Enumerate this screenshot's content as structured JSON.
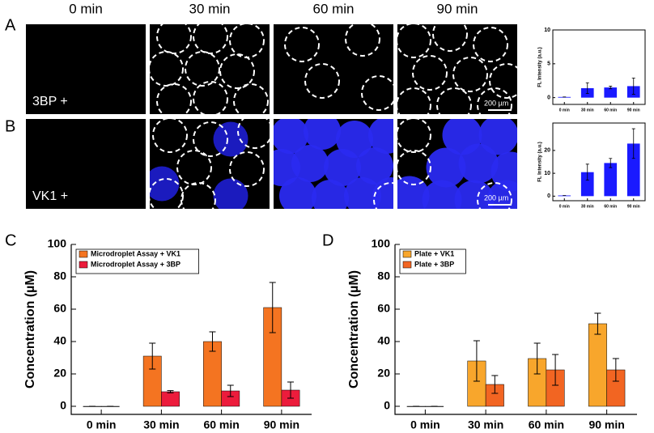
{
  "panel_labels": [
    "A",
    "B",
    "C",
    "D"
  ],
  "column_headers": [
    "0 min",
    "30 min",
    "60 min",
    "90 min"
  ],
  "image_labels": [
    "3BP +",
    "VK1 +"
  ],
  "scale_bar": "200 µm",
  "chart_data": [
    {
      "type": "bar",
      "ylabel": "FL Intensity (a.u.)",
      "categories": [
        "0 min",
        "30 min",
        "60 min",
        "90 min"
      ],
      "series": [
        {
          "color": "#1a1aff",
          "values": [
            0.1,
            1.4,
            1.5,
            1.7
          ],
          "errors": [
            0,
            0.8,
            0.2,
            1.2
          ]
        }
      ],
      "ylim": [
        -1,
        10
      ],
      "yticks": [
        0,
        5,
        10
      ]
    },
    {
      "type": "bar",
      "ylabel": "FL Intensity (a.u.)",
      "categories": [
        "0 min",
        "30 min",
        "60 min",
        "90 min"
      ],
      "series": [
        {
          "color": "#1a1aff",
          "values": [
            0.3,
            10.5,
            14.5,
            23
          ],
          "errors": [
            0,
            3.5,
            2,
            6.5
          ]
        }
      ],
      "ylim": [
        -2,
        32
      ],
      "yticks": [
        0,
        10,
        20
      ]
    },
    {
      "type": "bar",
      "ylabel": "Concentration (µM)",
      "categories": [
        "0 min",
        "30 min",
        "60 min",
        "90 min"
      ],
      "series": [
        {
          "name": "Microdroplet Assay + VK1",
          "color": "#f47421",
          "values": [
            0,
            31,
            40,
            61
          ],
          "errors": [
            0,
            8,
            6,
            15.5
          ]
        },
        {
          "name": "Microdroplet Assay + 3BP",
          "color": "#ec1c3c",
          "values": [
            0,
            9,
            9.5,
            10
          ],
          "errors": [
            0,
            0.7,
            3.5,
            5
          ]
        }
      ],
      "ylim": [
        -5,
        100
      ],
      "yticks": [
        0,
        20,
        40,
        60,
        80,
        100
      ],
      "legend": "upper left"
    },
    {
      "type": "bar",
      "ylabel": "Concentration (µM)",
      "categories": [
        "0 min",
        "30 min",
        "60 min",
        "90 min"
      ],
      "series": [
        {
          "name": "Plate + VK1",
          "color": "#f8a62c",
          "values": [
            0,
            28,
            29.5,
            51
          ],
          "errors": [
            0,
            12.5,
            9.5,
            6.5
          ]
        },
        {
          "name": "Plate + 3BP",
          "color": "#f26522",
          "values": [
            0,
            13.5,
            22.5,
            22.5
          ],
          "errors": [
            0,
            5.5,
            9.5,
            7
          ]
        }
      ],
      "ylim": [
        -5,
        100
      ],
      "yticks": [
        0,
        20,
        40,
        60,
        80,
        100
      ],
      "legend": "upper left"
    }
  ]
}
